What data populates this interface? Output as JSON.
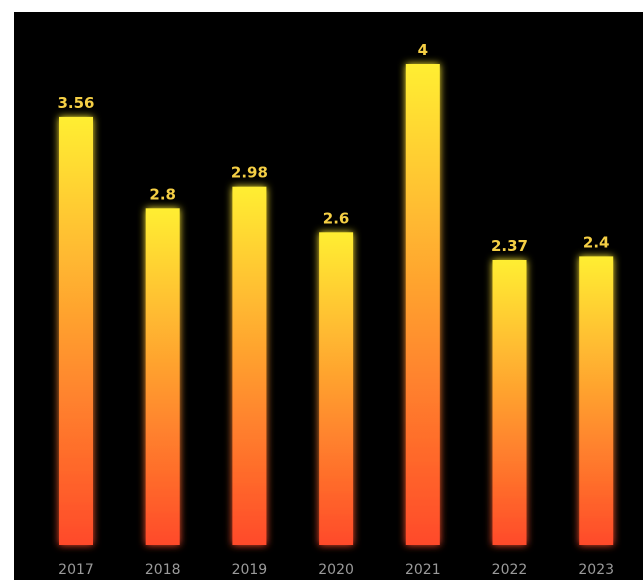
{
  "chart_data": {
    "type": "bar",
    "title": "",
    "xlabel": "",
    "ylabel": "",
    "categories": [
      "2017",
      "2018",
      "2019",
      "2020",
      "2021",
      "2022",
      "2023"
    ],
    "values": [
      3.56,
      2.8,
      2.98,
      2.6,
      4,
      2.37,
      2.4
    ],
    "value_labels": [
      "3.56",
      "2.8",
      "2.98",
      "2.6",
      "4",
      "2.37",
      "2.4"
    ],
    "ylim": [
      0,
      4
    ],
    "grid": false,
    "legend": "none",
    "colors": {
      "background": "#000000",
      "bar_top": "#ffee33",
      "bar_bottom": "#ff4a2a",
      "bar_glow": "#ff9a1a",
      "value_label": "#f5cf45",
      "tick_label": "#9a9a9a"
    }
  }
}
